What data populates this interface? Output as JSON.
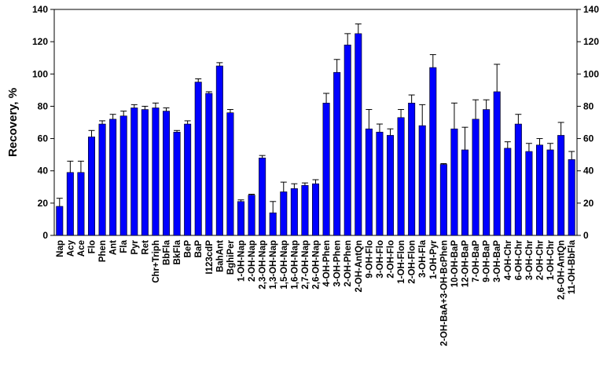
{
  "chart_data": {
    "type": "bar",
    "title": "",
    "xlabel": "",
    "ylabel": "Recovery, %",
    "ylim": [
      0,
      140
    ],
    "yticks": [
      0,
      20,
      40,
      60,
      80,
      100,
      120,
      140
    ],
    "right_axis": true,
    "grid": false,
    "legend": "none",
    "bar_color": "#0000FF",
    "categories": [
      "Nap",
      "Acy",
      "Ace",
      "Flo",
      "Phen",
      "Ant",
      "Fla",
      "Pyr",
      "Ret",
      "Chr+Triph",
      "BbFla",
      "BkFla",
      "BeP",
      "BaP",
      "I123cdP",
      "BahAnt",
      "BghiPer",
      "1-OH-Nap",
      "2-OH-Nap",
      "2,3-OH-Nap",
      "1,3-OH-Nap",
      "1,5-OH-Nap",
      "1,6-OH-Nap",
      "2,7-OH-Nap",
      "2,6-OH-Nap",
      "4-OH-Phen",
      "3-OH-Phen",
      "2-OH-Phen",
      "2-OH-AntQn",
      "9-OH-Flo",
      "3-OH-Flo",
      "2-OH-Flo",
      "1-OH-Flon",
      "2-OH-Flon",
      "3-OH-Fla",
      "1-OH-Pyr",
      "2-OH-BaA+3-OH-BcPhen",
      "10-OH-BaP",
      "12-OH-BaP",
      "7-OH-BaP",
      "9-OH-BaP",
      "3-OH-BaP",
      "4-OH-Chr",
      "6-OH-Chr",
      "3-OH-Chr",
      "2-OH-Chr",
      "1-OH-Chr",
      "2,6-OH-AntQn",
      "11-OH-BbFla"
    ],
    "values": [
      18,
      39,
      39,
      61,
      69,
      72,
      74,
      79,
      78,
      79,
      77,
      64,
      69,
      95,
      88,
      105,
      76,
      21,
      25,
      48,
      14,
      27,
      29,
      31,
      32,
      82,
      101,
      118,
      125,
      66,
      64,
      62,
      73,
      82,
      68,
      104,
      44,
      66,
      53,
      72,
      78,
      89,
      54,
      69,
      52,
      56,
      53,
      62,
      47
    ],
    "errors": [
      5,
      7,
      7,
      4,
      2,
      3,
      3,
      2,
      2,
      3,
      2,
      1,
      2,
      2,
      1,
      2,
      2,
      1,
      0.5,
      1.5,
      7,
      6,
      3,
      1.5,
      2.5,
      6,
      8,
      7,
      6,
      12,
      5,
      4,
      5,
      5,
      13,
      8,
      0.5,
      16,
      14,
      12,
      6,
      17,
      4,
      6,
      5,
      4,
      4,
      8,
      5
    ]
  }
}
